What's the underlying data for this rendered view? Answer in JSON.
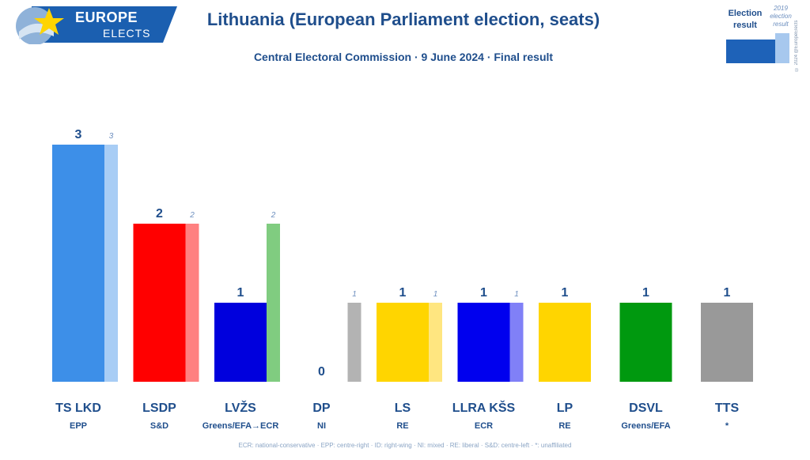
{
  "logo": {
    "line1": "EUROPE",
    "line2": "ELECTS"
  },
  "title": "Lithuania (European Parliament election, seats)",
  "subtitle": "Central Electoral Commission · 9 June 2024 · Final result",
  "legend": {
    "current_label": "Election result",
    "previous_label": "2019 election result"
  },
  "copyright": "© 2024 @EuropeElects",
  "footnote": "ECR: national-conservative · EPP: centre-right · ID: right-wing · NI: mixed · RE: liberal · S&D: centre-left · *: unaffiliated",
  "colors": {
    "brand": "#1f4e8c",
    "logo_bg": "#1b5fb0"
  },
  "chart_data": {
    "type": "bar",
    "title": "Lithuania (European Parliament election, seats)",
    "ylim": [
      0,
      3
    ],
    "grid": false,
    "legend_position": "top-right",
    "categories": [
      "TS LKD",
      "LSDP",
      "LVŽS",
      "DP",
      "LS",
      "LLRA KŠS",
      "LP",
      "DSVL",
      "TTS"
    ],
    "groups": [
      "EPP",
      "S&D",
      "Greens/EFA→ECR",
      "NI",
      "RE",
      "ECR",
      "RE",
      "Greens/EFA",
      "*"
    ],
    "series": [
      {
        "name": "Election result",
        "values": [
          3,
          2,
          1,
          0,
          1,
          1,
          1,
          1,
          1
        ],
        "colors": [
          "#3d8fe8",
          "#ff0000",
          "#0000dd",
          "#b3b3b3",
          "#ffd500",
          "#0000ee",
          "#ffd500",
          "#00990f",
          "#999999"
        ]
      },
      {
        "name": "2019 election result",
        "values": [
          3,
          2,
          2,
          1,
          1,
          1,
          null,
          null,
          null
        ],
        "colors": [
          "#a8cdf5",
          "#ff8080",
          "#80cc80",
          "#b3b3b3",
          "#ffe680",
          "#8080f7",
          null,
          null,
          null
        ]
      }
    ]
  }
}
